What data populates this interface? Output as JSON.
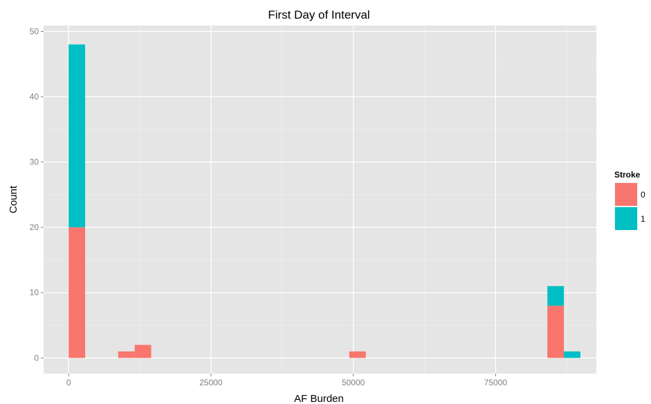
{
  "chart_data": {
    "type": "bar",
    "subtype": "stacked-histogram",
    "title": "First Day of Interval",
    "xlabel": "AF Burden",
    "ylabel": "Count",
    "xlim": [
      -4400,
      92700
    ],
    "ylim": [
      -2.4,
      50.9
    ],
    "xticks": [
      0,
      25000,
      50000,
      75000
    ],
    "xtick_labels": [
      "0",
      "25000",
      "50000",
      "75000"
    ],
    "yticks": [
      0,
      10,
      20,
      30,
      40,
      50
    ],
    "ytick_labels": [
      "0",
      "10",
      "20",
      "30",
      "40",
      "50"
    ],
    "grid": true,
    "legend": {
      "title": "Stroke",
      "position": "right"
    },
    "bins": [
      {
        "x0": 0,
        "x1": 2900,
        "counts": [
          20,
          28
        ]
      },
      {
        "x0": 8700,
        "x1": 11600,
        "counts": [
          1,
          0
        ]
      },
      {
        "x0": 11600,
        "x1": 14500,
        "counts": [
          2,
          0
        ]
      },
      {
        "x0": 49300,
        "x1": 52200,
        "counts": [
          1,
          0
        ]
      },
      {
        "x0": 84100,
        "x1": 87000,
        "counts": [
          8,
          3
        ]
      },
      {
        "x0": 87000,
        "x1": 89900,
        "counts": [
          0,
          1
        ]
      }
    ],
    "series": [
      {
        "name": "0",
        "color": "#F8766D"
      },
      {
        "name": "1",
        "color": "#00BFC4"
      }
    ],
    "panel_color": "#E5E5E5",
    "grid_color": "#FFFFFF"
  }
}
